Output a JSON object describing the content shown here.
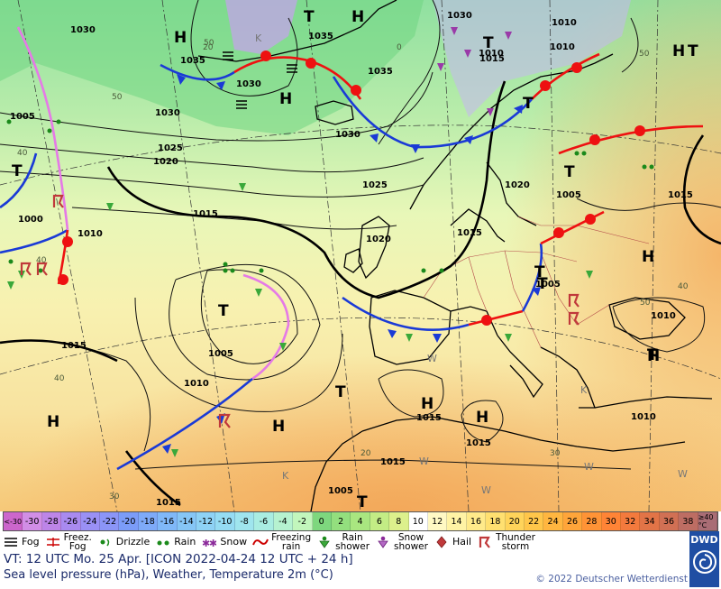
{
  "map": {
    "highs": [
      "H",
      "H",
      "H",
      "H",
      "H",
      "H",
      "H",
      "H",
      "H",
      "H"
    ],
    "lows": [
      "T",
      "T",
      "T",
      "T",
      "T",
      "T",
      "T",
      "T",
      "T",
      "T",
      "T",
      "T"
    ],
    "isobar_labels": [
      "1030",
      "1035",
      "1035",
      "1030",
      "1035",
      "1030",
      "1030",
      "1010",
      "1015",
      "1020",
      "1025",
      "1030",
      "1005",
      "1000",
      "1010",
      "1015",
      "1020",
      "1025",
      "1015",
      "1005",
      "1010",
      "1015",
      "1015",
      "1005",
      "1010",
      "1015",
      "1020",
      "1010",
      "1015",
      "1015",
      "1005",
      "1015",
      "1005",
      "1010",
      "1010"
    ],
    "temp_labels": [
      "50",
      "50",
      "50",
      "40",
      "40",
      "50",
      "40",
      "40",
      "30",
      "30",
      "20",
      "20",
      "0"
    ],
    "weather_letters": [
      "K",
      "W",
      "W",
      "K",
      "W",
      "W",
      "W",
      "K"
    ],
    "colors": {
      "land_cold": "#7fd98a",
      "land_mild": "#c9ed9b",
      "land_warm": "#f7f0a8",
      "sea_hot": "#f2b35a",
      "cold_front": "#1a3ad6",
      "warm_front": "#ee1111",
      "occlusion": "#e57ae6"
    }
  },
  "scale": {
    "cells": [
      "<-30",
      "-30",
      "-28",
      "-26",
      "-24",
      "-22",
      "-20",
      "-18",
      "-16",
      "-14",
      "-12",
      "-10",
      "-8",
      "-6",
      "-4",
      "-2",
      "0",
      "2",
      "4",
      "6",
      "8",
      "10",
      "12",
      "14",
      "16",
      "18",
      "20",
      "22",
      "24",
      "26",
      "28",
      "30",
      "32",
      "34",
      "36",
      "38",
      "≥40 °C"
    ],
    "colors": [
      "#cc66cc",
      "#d18ee6",
      "#bd85e8",
      "#a98af0",
      "#9a90f5",
      "#8b95f7",
      "#7b9cf8",
      "#7eaaf8",
      "#80b8f8",
      "#86c6f6",
      "#8ed2f5",
      "#95dcf3",
      "#9fe5ee",
      "#a9ede2",
      "#b6f2d0",
      "#c2f6bc",
      "#7ed77e",
      "#93df7e",
      "#a9e680",
      "#c3ec85",
      "#dcf08c",
      "#ffffff",
      "#fff9c4",
      "#fff3a5",
      "#ffea8a",
      "#ffe070",
      "#ffd45a",
      "#ffc64a",
      "#ffb640",
      "#ffa53a",
      "#ff9336",
      "#ff8436",
      "#f37a3d",
      "#e27447",
      "#d17054",
      "#bd6d63",
      "#a96d75"
    ]
  },
  "legend": {
    "fog": "Fog",
    "freezing_fog": "Freez.\nFog",
    "drizzle": "Drizzle",
    "rain": "Rain",
    "snow": "Snow",
    "freezing_rain": "Freezing\nrain",
    "rain_shower": "Rain\nshower",
    "snow_shower": "Snow\nshower",
    "hail": "Hail",
    "thunderstorm": "Thunder\nstorm"
  },
  "footer": {
    "valid_time": "VT: 12 UTC Mo.   25 Apr. [ICON 2022-04-24  12 UTC + 24 h]",
    "subtitle": "Sea level pressure (hPa), Weather, Temperature 2m (°C)",
    "copyright": "© 2022 Deutscher Wetterdienst",
    "logo": "DWD"
  }
}
